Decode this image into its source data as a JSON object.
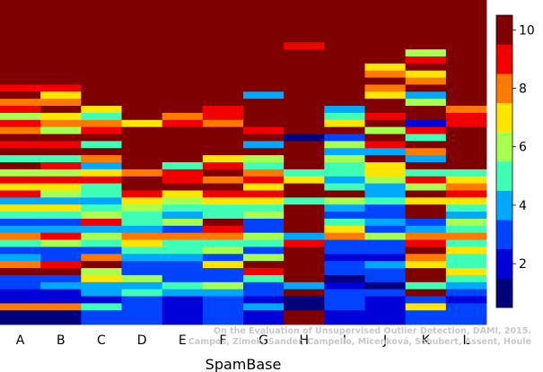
{
  "chart_data": {
    "type": "heatmap",
    "xlabel": "SpamBase",
    "categories": [
      "A",
      "B",
      "C",
      "D",
      "E",
      "F",
      "G",
      "H",
      "I",
      "J",
      "K",
      "L"
    ],
    "colorbar": {
      "ticks": [
        2,
        4,
        6,
        8,
        10
      ],
      "range": [
        0.5,
        10.5
      ],
      "levels": 10
    },
    "palette": [
      "#00007f",
      "#0000d9",
      "#0044ff",
      "#00a8ff",
      "#3fffb6",
      "#a7ff4f",
      "#ffe500",
      "#ff7a00",
      "#f20000",
      "#7f0000"
    ],
    "credit": [
      "On the Evaluation of Unsupervised Outlier Detection, DAMI, 2015.",
      "Campos, Zimek, Sander, Campello, Micenková, Schubert, Assent, Houle"
    ],
    "rows": 46,
    "columns": [
      {
        "name": "A",
        "values": [
          10,
          10,
          10,
          10,
          10,
          10,
          10,
          10,
          10,
          10,
          10,
          10,
          9,
          10,
          8,
          9,
          6,
          9,
          8,
          10,
          9,
          10,
          5,
          10,
          6,
          9,
          7,
          9,
          4,
          7,
          5,
          3,
          4,
          8,
          5,
          3,
          4,
          8,
          10,
          3,
          3,
          2,
          2,
          8,
          1,
          1
        ]
      },
      {
        "name": "B",
        "values": [
          10,
          10,
          10,
          10,
          10,
          10,
          10,
          10,
          10,
          10,
          10,
          10,
          9,
          7,
          8,
          10,
          7,
          8,
          6,
          10,
          9,
          10,
          5,
          9,
          6,
          9,
          7,
          6,
          4,
          7,
          5,
          3,
          4,
          9,
          6,
          3,
          3,
          9,
          10,
          3,
          4,
          2,
          2,
          8,
          1,
          1
        ]
      },
      {
        "name": "C",
        "values": [
          10,
          10,
          10,
          10,
          10,
          10,
          10,
          10,
          10,
          10,
          10,
          10,
          10,
          10,
          10,
          7,
          5,
          8,
          9,
          10,
          5,
          10,
          8,
          4,
          7,
          9,
          5,
          5,
          4,
          5,
          6,
          9,
          4,
          6,
          5,
          3,
          8,
          10,
          6,
          7,
          4,
          4,
          2,
          5,
          3,
          3
        ]
      },
      {
        "name": "D",
        "values": [
          10,
          10,
          10,
          10,
          10,
          10,
          10,
          10,
          10,
          10,
          10,
          10,
          10,
          10,
          10,
          10,
          10,
          7,
          10,
          10,
          10,
          10,
          10,
          10,
          8,
          10,
          10,
          9,
          7,
          6,
          5,
          5,
          4,
          8,
          7,
          5,
          4,
          3,
          3,
          6,
          4,
          5,
          3,
          3,
          3,
          3
        ]
      },
      {
        "name": "E",
        "values": [
          10,
          10,
          10,
          10,
          10,
          10,
          10,
          10,
          10,
          10,
          10,
          10,
          10,
          10,
          10,
          10,
          8,
          9,
          10,
          10,
          10,
          10,
          10,
          5,
          9,
          9,
          10,
          7,
          6,
          5,
          4,
          6,
          3,
          8,
          5,
          5,
          4,
          3,
          3,
          3,
          5,
          4,
          2,
          2,
          2,
          2
        ]
      },
      {
        "name": "F",
        "values": [
          10,
          10,
          10,
          10,
          10,
          10,
          10,
          10,
          10,
          10,
          10,
          10,
          10,
          10,
          10,
          9,
          9,
          8,
          10,
          10,
          10,
          10,
          7,
          9,
          10,
          8,
          10,
          9,
          7,
          5,
          5,
          10,
          9,
          8,
          5,
          6,
          3,
          7,
          3,
          3,
          6,
          4,
          3,
          3,
          3,
          3
        ]
      },
      {
        "name": "G",
        "values": [
          10,
          10,
          10,
          10,
          10,
          10,
          10,
          10,
          10,
          10,
          10,
          10,
          10,
          4,
          10,
          10,
          10,
          10,
          9,
          10,
          4,
          10,
          6,
          5,
          8,
          9,
          7,
          9,
          7,
          5,
          6,
          3,
          3,
          6,
          5,
          3,
          6,
          10,
          9,
          5,
          3,
          3,
          2,
          4,
          2,
          2
        ]
      },
      {
        "name": "H",
        "values": [
          10,
          10,
          10,
          10,
          10,
          10,
          9,
          10,
          10,
          10,
          10,
          10,
          10,
          10,
          10,
          10,
          10,
          10,
          10,
          1,
          10,
          10,
          10,
          10,
          5,
          7,
          10,
          10,
          5,
          10,
          10,
          10,
          10,
          4,
          9,
          10,
          10,
          10,
          10,
          10,
          4,
          10,
          1,
          1,
          10,
          10
        ]
      },
      {
        "name": "I",
        "values": [
          10,
          10,
          10,
          10,
          10,
          10,
          10,
          10,
          10,
          10,
          10,
          10,
          10,
          10,
          10,
          4,
          5,
          7,
          10,
          3,
          6,
          4,
          6,
          5,
          5,
          4,
          5,
          10,
          6,
          4,
          3,
          5,
          7,
          8,
          3,
          3,
          2,
          3,
          3,
          1,
          2,
          3,
          3,
          3,
          2,
          2
        ]
      },
      {
        "name": "J",
        "values": [
          10,
          10,
          10,
          10,
          10,
          10,
          10,
          10,
          10,
          7,
          8,
          10,
          8,
          7,
          10,
          10,
          9,
          10,
          6,
          10,
          9,
          4,
          10,
          7,
          7,
          6,
          4,
          4,
          5,
          3,
          3,
          4,
          3,
          6,
          3,
          3,
          2,
          4,
          3,
          3,
          1,
          3,
          2,
          2,
          2,
          2
        ]
      },
      {
        "name": "K",
        "values": [
          10,
          10,
          10,
          10,
          10,
          10,
          10,
          6,
          9,
          10,
          7,
          8,
          10,
          4,
          6,
          10,
          10,
          2,
          9,
          5,
          10,
          8,
          4,
          10,
          5,
          9,
          6,
          10,
          7,
          10,
          10,
          3,
          4,
          8,
          9,
          10,
          8,
          7,
          10,
          10,
          5,
          10,
          3,
          7,
          3,
          3
        ]
      },
      {
        "name": "L",
        "values": [
          10,
          10,
          10,
          10,
          10,
          10,
          10,
          10,
          10,
          10,
          10,
          10,
          10,
          10,
          10,
          8,
          9,
          9,
          10,
          10,
          10,
          10,
          10,
          10,
          5,
          7,
          8,
          9,
          7,
          5,
          4,
          6,
          5,
          8,
          5,
          7,
          5,
          5,
          7,
          5,
          4,
          3,
          2,
          3,
          3,
          3
        ]
      }
    ]
  }
}
